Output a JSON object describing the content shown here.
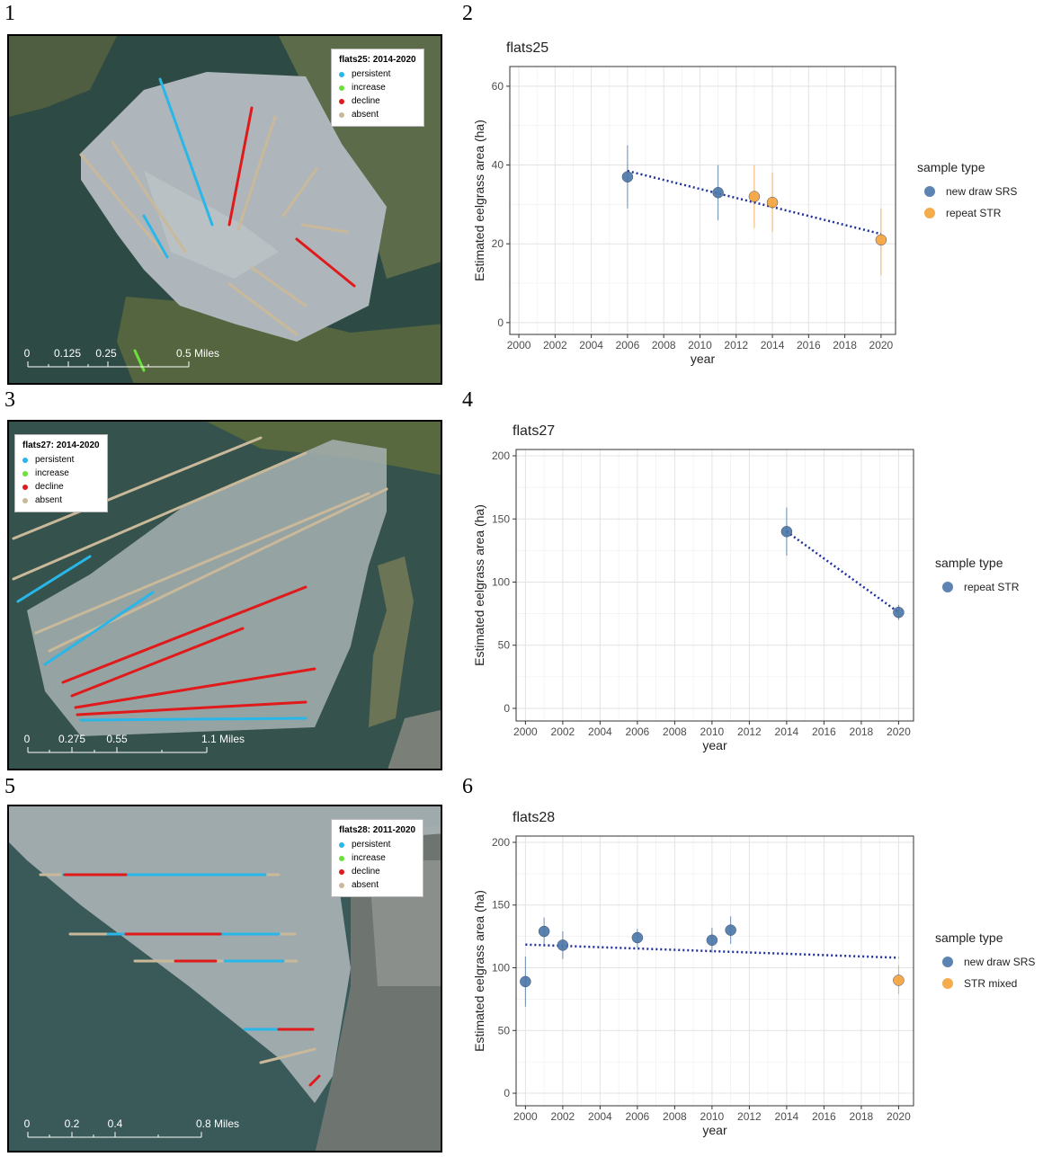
{
  "panel_numbers": [
    "1",
    "2",
    "3",
    "4",
    "5",
    "6"
  ],
  "maps": [
    {
      "legend_title": "flats25: 2014-2020",
      "legend_items": [
        {
          "label": "persistent",
          "color": "#29b6e8"
        },
        {
          "label": "increase",
          "color": "#6be03a"
        },
        {
          "label": "decline",
          "color": "#e01a1a"
        },
        {
          "label": "absent",
          "color": "#c9b99a"
        }
      ],
      "scale_labels": [
        "0",
        "0.125",
        "0.25",
        "0.5 Miles"
      ]
    },
    {
      "legend_title": "flats27: 2014-2020",
      "legend_items": [
        {
          "label": "persistent",
          "color": "#29b6e8"
        },
        {
          "label": "increase",
          "color": "#6be03a"
        },
        {
          "label": "decline",
          "color": "#e01a1a"
        },
        {
          "label": "absent",
          "color": "#c9b99a"
        }
      ],
      "scale_labels": [
        "0",
        "0.275",
        "0.55",
        "1.1 Miles"
      ]
    },
    {
      "legend_title": "flats28: 2011-2020",
      "legend_items": [
        {
          "label": "persistent",
          "color": "#29b6e8"
        },
        {
          "label": "increase",
          "color": "#6be03a"
        },
        {
          "label": "decline",
          "color": "#e01a1a"
        },
        {
          "label": "absent",
          "color": "#c9b99a"
        }
      ],
      "scale_labels": [
        "0",
        "0.2",
        "0.4",
        "0.8 Miles"
      ]
    }
  ],
  "chart_data": [
    {
      "type": "scatter",
      "title": "flats25",
      "xlabel": "year",
      "ylabel": "Estimated eelgrass area (ha)",
      "xlim": [
        1999.5,
        2020.8
      ],
      "ylim": [
        -3,
        65
      ],
      "xticks": [
        2000,
        2002,
        2004,
        2006,
        2008,
        2010,
        2012,
        2014,
        2016,
        2018,
        2020
      ],
      "yticks": [
        0,
        20,
        40,
        60
      ],
      "legend_title": "sample type",
      "series": [
        {
          "name": "new draw SRS",
          "color": "#4a76a8",
          "points": [
            {
              "x": 2006,
              "y": 37,
              "lo": 29,
              "hi": 45
            },
            {
              "x": 2011,
              "y": 33,
              "lo": 26,
              "hi": 40
            }
          ]
        },
        {
          "name": "repeat STR",
          "color": "#f4a33a",
          "points": [
            {
              "x": 2013,
              "y": 32,
              "lo": 24,
              "hi": 40
            },
            {
              "x": 2014,
              "y": 30.5,
              "lo": 23,
              "hi": 38
            },
            {
              "x": 2020,
              "y": 21,
              "lo": 12,
              "hi": 29
            }
          ]
        }
      ],
      "trend": {
        "x": [
          2006,
          2020
        ],
        "y": [
          38.5,
          22.5
        ],
        "color": "#1f2f9c"
      }
    },
    {
      "type": "scatter",
      "title": "flats27",
      "xlabel": "year",
      "ylabel": "Estimated eelgrass area (ha)",
      "xlim": [
        1999.5,
        2020.8
      ],
      "ylim": [
        -10,
        205
      ],
      "xticks": [
        2000,
        2002,
        2004,
        2006,
        2008,
        2010,
        2012,
        2014,
        2016,
        2018,
        2020
      ],
      "yticks": [
        0,
        50,
        100,
        150,
        200
      ],
      "legend_title": "sample type",
      "series": [
        {
          "name": "repeat STR",
          "color": "#4a76a8",
          "points": [
            {
              "x": 2014,
              "y": 140,
              "lo": 121,
              "hi": 159
            },
            {
              "x": 2020,
              "y": 76,
              "lo": 70,
              "hi": 82
            }
          ]
        }
      ],
      "trend": {
        "x": [
          2014,
          2020
        ],
        "y": [
          140,
          76
        ],
        "color": "#1f2f9c"
      }
    },
    {
      "type": "scatter",
      "title": "flats28",
      "xlabel": "year",
      "ylabel": "Estimated eelgrass area (ha)",
      "xlim": [
        1999.5,
        2020.8
      ],
      "ylim": [
        -10,
        205
      ],
      "xticks": [
        2000,
        2002,
        2004,
        2006,
        2008,
        2010,
        2012,
        2014,
        2016,
        2018,
        2020
      ],
      "yticks": [
        0,
        50,
        100,
        150,
        200
      ],
      "legend_title": "sample type",
      "series": [
        {
          "name": "new draw SRS",
          "color": "#4a76a8",
          "points": [
            {
              "x": 2000,
              "y": 89,
              "lo": 69,
              "hi": 109
            },
            {
              "x": 2001,
              "y": 129,
              "lo": 119,
              "hi": 140
            },
            {
              "x": 2002,
              "y": 118,
              "lo": 107,
              "hi": 129
            },
            {
              "x": 2006,
              "y": 124,
              "lo": 116,
              "hi": 131
            },
            {
              "x": 2010,
              "y": 122,
              "lo": 112,
              "hi": 132
            },
            {
              "x": 2011,
              "y": 130,
              "lo": 119,
              "hi": 141
            }
          ]
        },
        {
          "name": "STR mixed",
          "color": "#f4a33a",
          "points": [
            {
              "x": 2020,
              "y": 90,
              "lo": 79,
              "hi": 102
            }
          ]
        }
      ],
      "trend": {
        "x": [
          2000,
          2020
        ],
        "y": [
          118.5,
          108
        ],
        "color": "#1f2f9c"
      }
    }
  ]
}
